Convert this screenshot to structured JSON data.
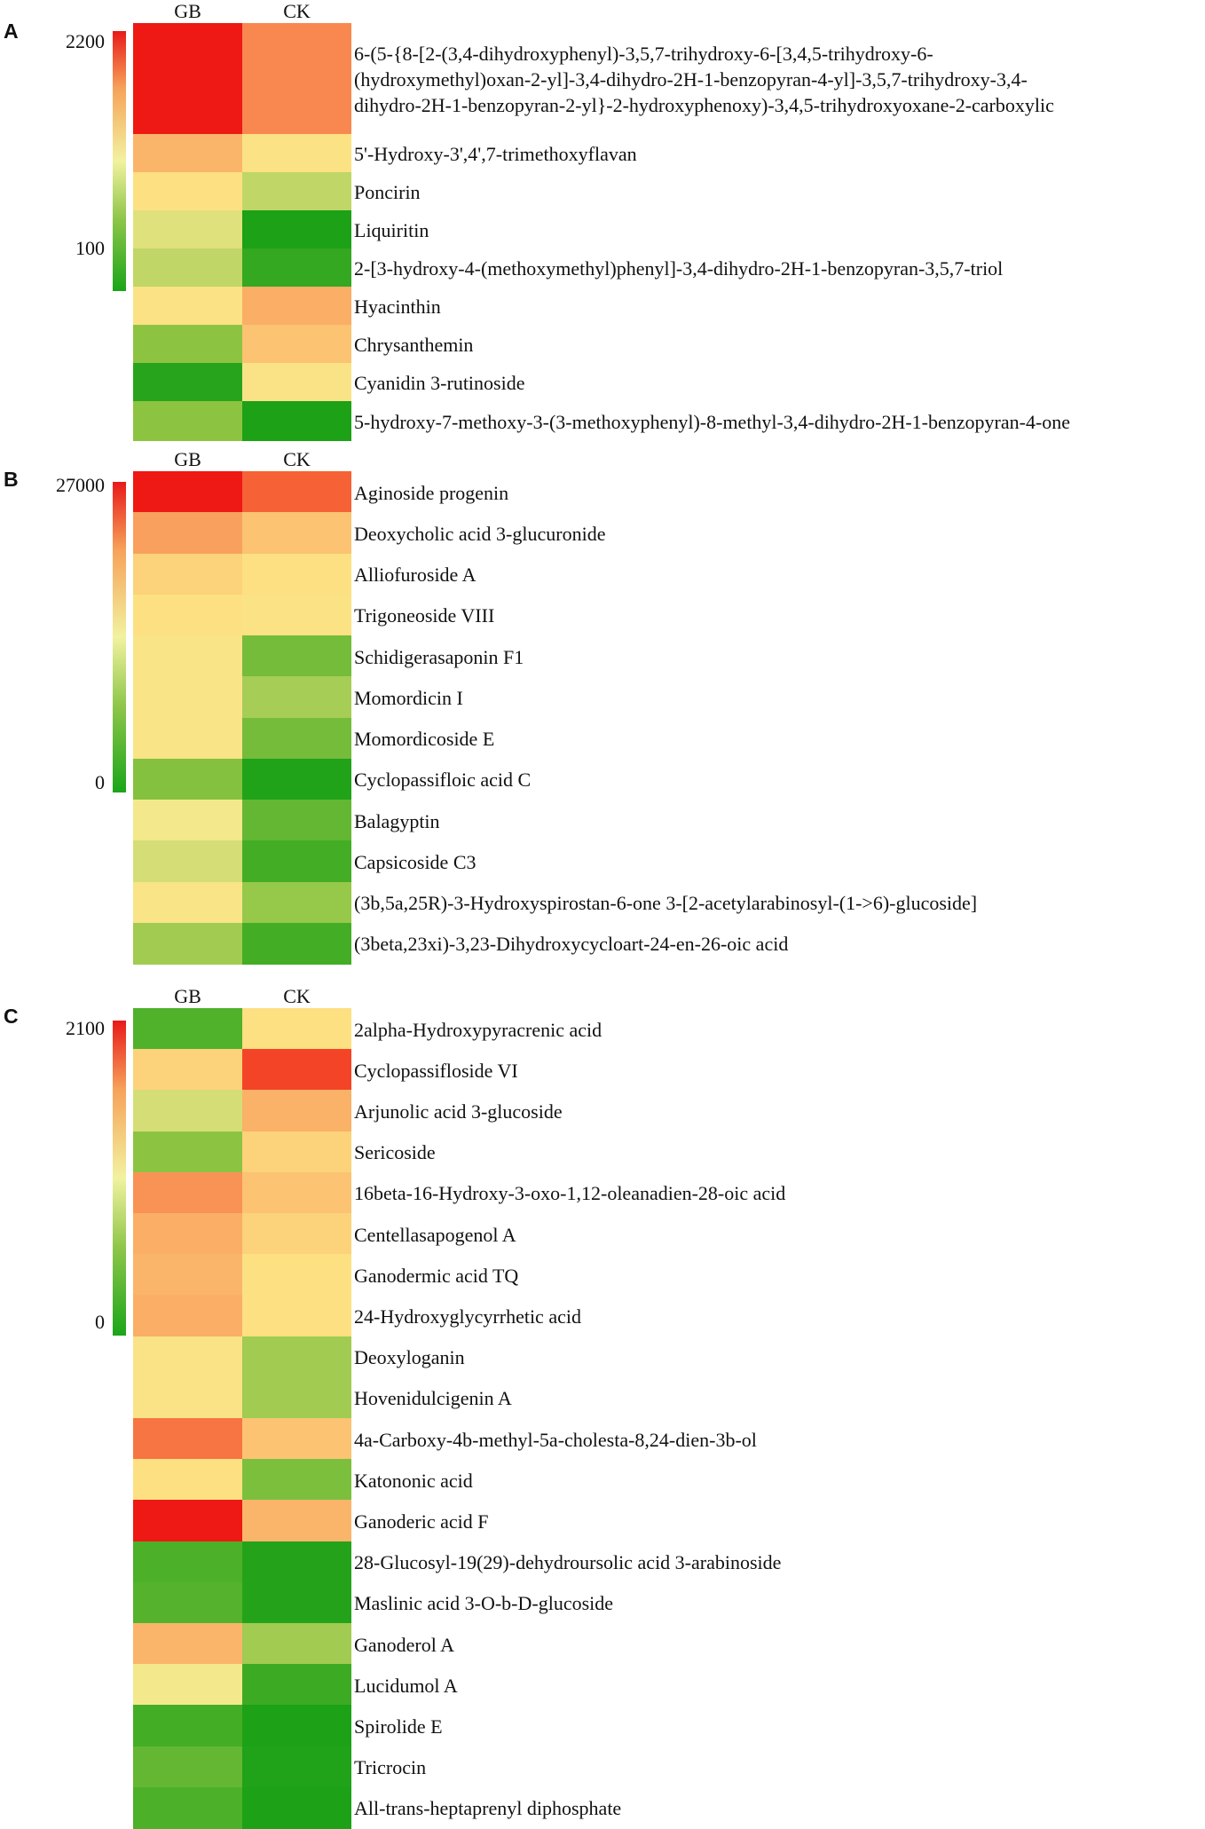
{
  "chart_data": [
    {
      "type": "heatmap",
      "panel": "A",
      "columns": [
        "GB",
        "CK"
      ],
      "colorbar": {
        "max_label": "2200",
        "mid_label": "100",
        "colors": [
          "#e81a1a",
          "#f2f2a0",
          "#1aa51a"
        ]
      },
      "rows": [
        {
          "label_lines": [
            "6-(5-{8-[2-(3,4-dihydroxyphenyl)-3,5,7-trihydroxy-6-[3,4,5-trihydroxy-6-",
            "(hydroxymethyl)oxan-2-yl]-3,4-dihydro-2H-1-benzopyran-4-yl]-3,5,7-trihydroxy-3,4-",
            "dihydro-2H-1-benzopyran-2-yl}-2-hydroxyphenoxy)-3,4,5-trihydroxyoxane-2-carboxylic"
          ],
          "values": [
            1.0,
            0.82
          ]
        },
        {
          "label_lines": [
            "5'-Hydroxy-3',4',7-trimethoxyflavan"
          ],
          "values": [
            0.72,
            0.58
          ]
        },
        {
          "label_lines": [
            "Poncirin"
          ],
          "values": [
            0.6,
            0.4
          ]
        },
        {
          "label_lines": [
            "Liquiritin"
          ],
          "values": [
            0.46,
            0.02
          ]
        },
        {
          "label_lines": [
            "2-[3-hydroxy-4-(methoxymethyl)phenyl]-3,4-dihydro-2H-1-benzopyran-3,5,7-triol"
          ],
          "values": [
            0.4,
            0.08
          ]
        },
        {
          "label_lines": [
            "Hyacinthin"
          ],
          "values": [
            0.58,
            0.74
          ]
        },
        {
          "label_lines": [
            "Chrysanthemin"
          ],
          "values": [
            0.3,
            0.68
          ]
        },
        {
          "label_lines": [
            "Cyanidin 3-rutinoside"
          ],
          "values": [
            0.05,
            0.56
          ]
        },
        {
          "label_lines": [
            "5-hydroxy-7-methoxy-3-(3-methoxyphenyl)-8-methyl-3,4-dihydro-2H-1-benzopyran-4-one"
          ],
          "values": [
            0.3,
            0.02
          ]
        }
      ]
    },
    {
      "type": "heatmap",
      "panel": "B",
      "columns": [
        "GB",
        "CK"
      ],
      "colorbar": {
        "max_label": "27000",
        "mid_label": "0",
        "colors": [
          "#e81a1a",
          "#f2f2a0",
          "#1aa51a"
        ]
      },
      "rows": [
        {
          "label_lines": [
            "Aginoside progenin"
          ],
          "values": [
            1.0,
            0.9
          ]
        },
        {
          "label_lines": [
            "Deoxycholic acid 3-glucuronide"
          ],
          "values": [
            0.77,
            0.68
          ]
        },
        {
          "label_lines": [
            "Alliofuroside A"
          ],
          "values": [
            0.64,
            0.6
          ]
        },
        {
          "label_lines": [
            "Trigoneoside VIII"
          ],
          "values": [
            0.6,
            0.58
          ]
        },
        {
          "label_lines": [
            "Schidigerasaponin F1"
          ],
          "values": [
            0.55,
            0.24
          ]
        },
        {
          "label_lines": [
            "Momordicin I"
          ],
          "values": [
            0.55,
            0.35
          ]
        },
        {
          "label_lines": [
            "Momordicoside E"
          ],
          "values": [
            0.55,
            0.24
          ]
        },
        {
          "label_lines": [
            "Cyclopassifloic acid C"
          ],
          "values": [
            0.28,
            0.03
          ]
        },
        {
          "label_lines": [
            "Balagyptin"
          ],
          "values": [
            0.5,
            0.2
          ]
        },
        {
          "label_lines": [
            "Capsicoside C3"
          ],
          "values": [
            0.44,
            0.12
          ]
        },
        {
          "label_lines": [
            "(3b,5a,25R)-3-Hydroxyspirostan-6-one 3-[2-acetylarabinosyl-(1->6)-glucoside]"
          ],
          "values": [
            0.55,
            0.32
          ]
        },
        {
          "label_lines": [
            "(3beta,23xi)-3,23-Dihydroxycycloart-24-en-26-oic acid"
          ],
          "values": [
            0.34,
            0.12
          ]
        }
      ]
    },
    {
      "type": "heatmap",
      "panel": "C",
      "columns": [
        "GB",
        "CK"
      ],
      "colorbar": {
        "max_label": "2100",
        "mid_label": "0",
        "colors": [
          "#e81a1a",
          "#f2f2a0",
          "#1aa51a"
        ]
      },
      "rows": [
        {
          "label_lines": [
            "2alpha-Hydroxypyracrenic acid"
          ],
          "values": [
            0.15,
            0.6
          ]
        },
        {
          "label_lines": [
            "Cyclopassifloside VI"
          ],
          "values": [
            0.64,
            0.94
          ]
        },
        {
          "label_lines": [
            "Arjunolic acid 3-glucoside"
          ],
          "values": [
            0.44,
            0.73
          ]
        },
        {
          "label_lines": [
            "Sericoside"
          ],
          "values": [
            0.3,
            0.64
          ]
        },
        {
          "label_lines": [
            "16beta-16-Hydroxy-3-oxo-1,12-oleanadien-28-oic acid"
          ],
          "values": [
            0.8,
            0.68
          ]
        },
        {
          "label_lines": [
            "Centellasapogenol A"
          ],
          "values": [
            0.74,
            0.64
          ]
        },
        {
          "label_lines": [
            "Ganodermic acid TQ"
          ],
          "values": [
            0.72,
            0.6
          ]
        },
        {
          "label_lines": [
            "24-Hydroxyglycyrrhetic acid"
          ],
          "values": [
            0.74,
            0.6
          ]
        },
        {
          "label_lines": [
            "Deoxyloganin"
          ],
          "values": [
            0.56,
            0.34
          ]
        },
        {
          "label_lines": [
            "Hovenidulcigenin A"
          ],
          "values": [
            0.56,
            0.34
          ]
        },
        {
          "label_lines": [
            "4a-Carboxy-4b-methyl-5a-cholesta-8,24-dien-3b-ol"
          ],
          "values": [
            0.86,
            0.68
          ]
        },
        {
          "label_lines": [
            "Katononic acid"
          ],
          "values": [
            0.6,
            0.26
          ]
        },
        {
          "label_lines": [
            "Ganoderic acid F"
          ],
          "values": [
            1.0,
            0.72
          ]
        },
        {
          "label_lines": [
            "28-Glucosyl-19(29)-dehydroursolic acid 3-arabinoside"
          ],
          "values": [
            0.14,
            0.04
          ]
        },
        {
          "label_lines": [
            "Maslinic acid 3-O-b-D-glucoside"
          ],
          "values": [
            0.16,
            0.04
          ]
        },
        {
          "label_lines": [
            "Ganoderol A"
          ],
          "values": [
            0.72,
            0.34
          ]
        },
        {
          "label_lines": [
            "Lucidumol A"
          ],
          "values": [
            0.5,
            0.1
          ]
        },
        {
          "label_lines": [
            "Spirolide E"
          ],
          "values": [
            0.12,
            0.02
          ]
        },
        {
          "label_lines": [
            "Tricrocin"
          ],
          "values": [
            0.2,
            0.03
          ]
        },
        {
          "label_lines": [
            "All-trans-heptaprenyl diphosphate"
          ],
          "values": [
            0.14,
            0.02
          ]
        }
      ]
    }
  ]
}
